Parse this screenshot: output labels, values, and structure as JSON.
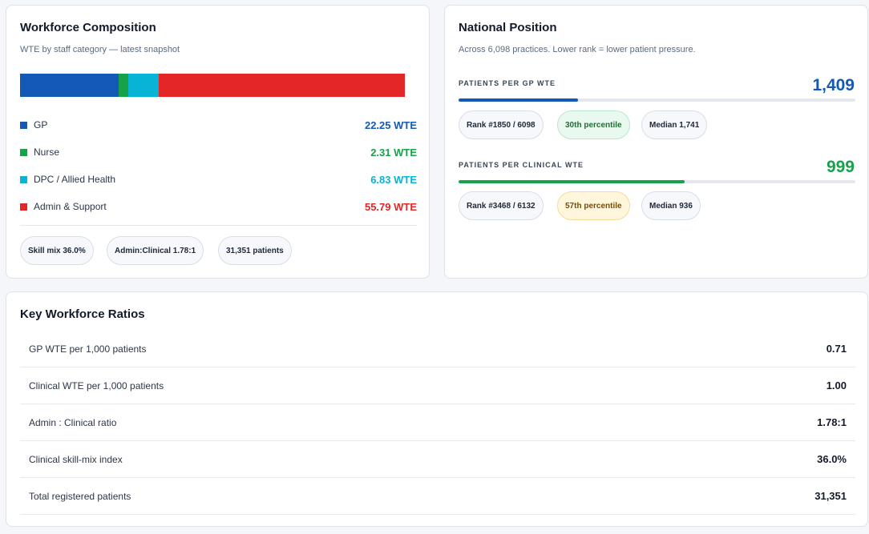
{
  "composition": {
    "title": "Workforce Composition",
    "subtitle": "WTE by staff category — latest snapshot",
    "segments": [
      {
        "label": "GP",
        "value_text": "22.25 WTE",
        "wte": 22.25,
        "color": "#1559b7"
      },
      {
        "label": "Nurse",
        "value_text": "2.31 WTE",
        "wte": 2.31,
        "color": "#17a24a"
      },
      {
        "label": "DPC / Allied Health",
        "value_text": "6.83 WTE",
        "wte": 6.83,
        "color": "#07b4d6"
      },
      {
        "label": "Admin & Support",
        "value_text": "55.79 WTE",
        "wte": 55.79,
        "color": "#e32626"
      }
    ],
    "chips": [
      "Skill mix 36.0%",
      "Admin:Clinical 1.78:1",
      "31,351 patients"
    ]
  },
  "national": {
    "title": "National Position",
    "subtitle": "Across 6,098 practices. Lower rank = lower patient pressure.",
    "metrics": [
      {
        "label": "PATIENTS PER GP WTE",
        "value": "1,409",
        "value_color": "#1559b7",
        "bar_color": "#1559b7",
        "bar_fraction": 0.3,
        "rank": "Rank #1850 / 6098",
        "percentile": "30th percentile",
        "percentile_style": "green",
        "median": "Median 1,741"
      },
      {
        "label": "PATIENTS PER CLINICAL WTE",
        "value": "999",
        "value_color": "#17a24a",
        "bar_color": "#17a24a",
        "bar_fraction": 0.57,
        "rank": "Rank #3468 / 6132",
        "percentile": "57th percentile",
        "percentile_style": "amber",
        "median": "Median 936"
      }
    ]
  },
  "ratios": {
    "title": "Key Workforce Ratios",
    "rows": [
      {
        "label": "GP WTE per 1,000 patients",
        "value": "0.71"
      },
      {
        "label": "Clinical WTE per 1,000 patients",
        "value": "1.00"
      },
      {
        "label": "Admin : Clinical ratio",
        "value": "1.78:1"
      },
      {
        "label": "Clinical skill-mix index",
        "value": "36.0%"
      },
      {
        "label": "Total registered patients",
        "value": "31,351"
      }
    ]
  }
}
